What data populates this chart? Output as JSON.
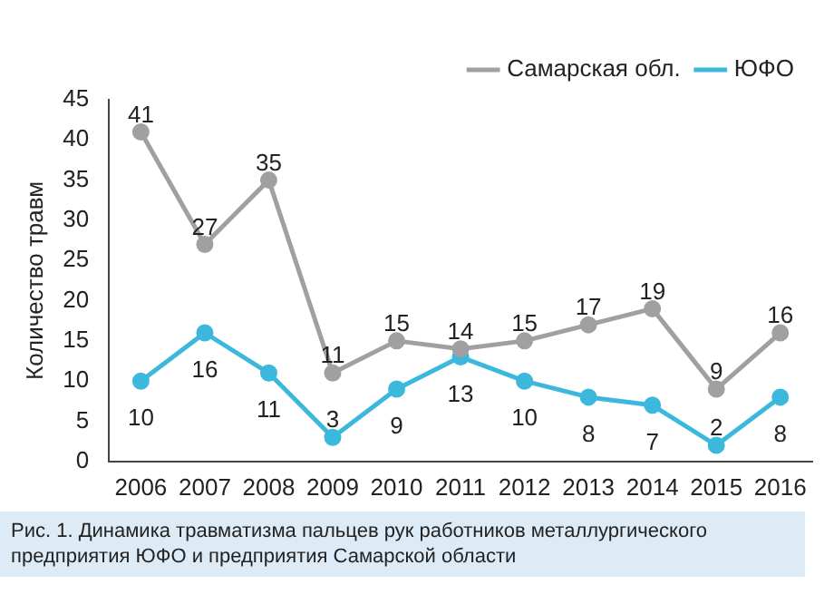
{
  "chart_data": {
    "type": "line",
    "ylabel": "Количество травм",
    "categories": [
      "2006",
      "2007",
      "2008",
      "2009",
      "2010",
      "2011",
      "2012",
      "2013",
      "2014",
      "2015",
      "2016"
    ],
    "series": [
      {
        "name": "Самарская обл.",
        "color": "#a0a0a0",
        "values": [
          41,
          27,
          35,
          11,
          15,
          14,
          15,
          17,
          19,
          9,
          16
        ]
      },
      {
        "name": "ЮФО",
        "color": "#3cb8dc",
        "values": [
          10,
          16,
          11,
          3,
          9,
          13,
          10,
          8,
          7,
          2,
          8
        ]
      }
    ],
    "ylim": [
      0,
      45
    ],
    "yticks": [
      0,
      5,
      10,
      15,
      20,
      25,
      30,
      35,
      40,
      45
    ],
    "grid": false,
    "legend": "top right",
    "marker": "circle",
    "line_style": "solid",
    "data_labels": true,
    "annotations": [
      "Рис. 1. Динамика травматизма пальцев рук работников металлургического предприятия ЮФО и предприятия Самарской области"
    ]
  }
}
